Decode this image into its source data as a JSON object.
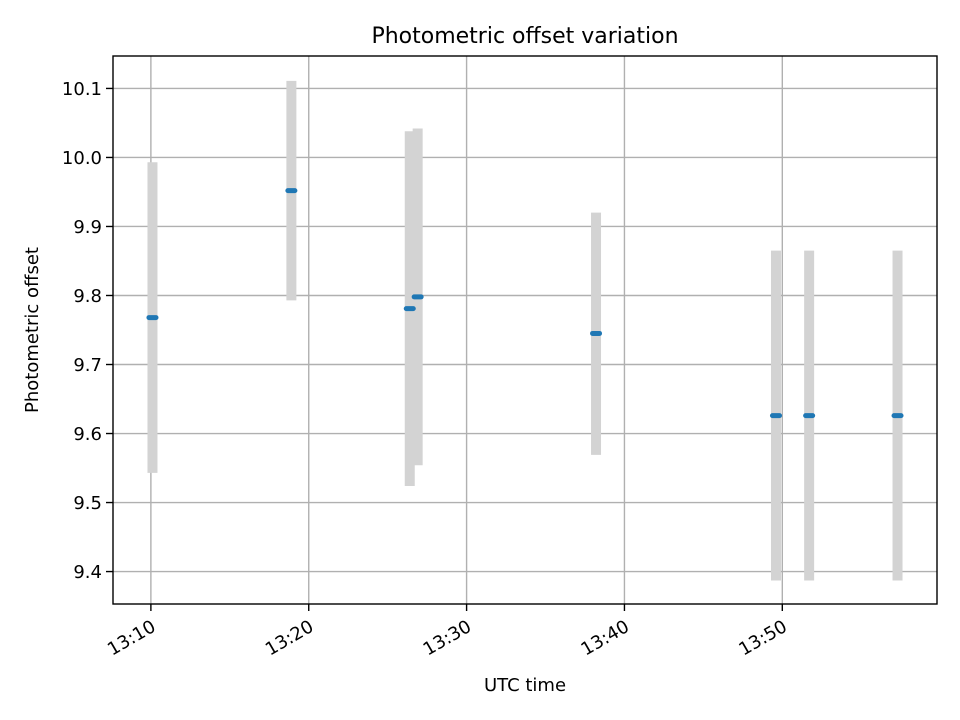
{
  "chart_data": {
    "type": "scatter",
    "title": "Photometric offset variation",
    "xlabel": "UTC time",
    "ylabel": "Photometric offset",
    "x_ticks": [
      "13:10",
      "13:20",
      "13:30",
      "13:40",
      "13:50"
    ],
    "y_ticks": [
      "9.4",
      "9.5",
      "9.6",
      "9.7",
      "9.8",
      "9.9",
      "10.0",
      "10.1"
    ],
    "xlim": [
      "13:07:36",
      "13:59:48"
    ],
    "ylim": [
      9.353,
      10.147
    ],
    "grid": true,
    "series": [
      {
        "marker": "horizontal-dash",
        "marker_color": "#1f77b4",
        "errorbar_color": "#d3d3d3",
        "points": [
          {
            "x": "13:10:06",
            "y": 9.768,
            "ylow": 9.543,
            "yhigh": 9.993
          },
          {
            "x": "13:18:54",
            "y": 9.952,
            "ylow": 9.793,
            "yhigh": 10.111
          },
          {
            "x": "13:26:24",
            "y": 9.781,
            "ylow": 9.524,
            "yhigh": 10.038
          },
          {
            "x": "13:26:54",
            "y": 9.798,
            "ylow": 9.554,
            "yhigh": 10.042
          },
          {
            "x": "13:38:12",
            "y": 9.745,
            "ylow": 9.569,
            "yhigh": 9.92
          },
          {
            "x": "13:49:36",
            "y": 9.626,
            "ylow": 9.387,
            "yhigh": 9.865
          },
          {
            "x": "13:51:42",
            "y": 9.626,
            "ylow": 9.387,
            "yhigh": 9.865
          },
          {
            "x": "13:57:18",
            "y": 9.626,
            "ylow": 9.387,
            "yhigh": 9.865
          }
        ]
      }
    ]
  }
}
